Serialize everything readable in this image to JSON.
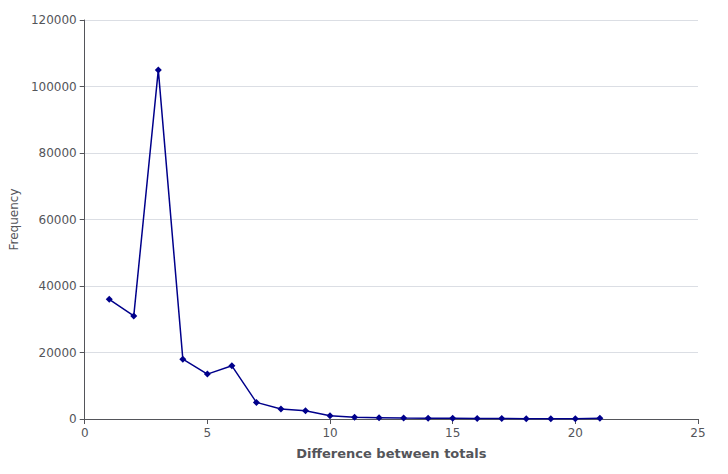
{
  "chart_data": {
    "type": "line",
    "x": [
      1,
      2,
      3,
      4,
      5,
      6,
      7,
      8,
      9,
      10,
      11,
      12,
      13,
      14,
      15,
      16,
      17,
      18,
      19,
      20,
      21
    ],
    "values": [
      36000,
      31000,
      105000,
      18000,
      13500,
      16000,
      5000,
      3000,
      2500,
      1000,
      500,
      400,
      300,
      250,
      200,
      150,
      150,
      100,
      100,
      100,
      200
    ],
    "color": "#00008B",
    "marker": "diamond",
    "xlabel": "Difference between totals",
    "ylabel": "Frequency",
    "xlim": [
      0,
      25
    ],
    "ylim": [
      0,
      120000
    ],
    "xticks": [
      0,
      5,
      10,
      15,
      20,
      25
    ],
    "yticks": [
      0,
      20000,
      40000,
      60000,
      80000,
      100000,
      120000
    ],
    "grid": true
  }
}
